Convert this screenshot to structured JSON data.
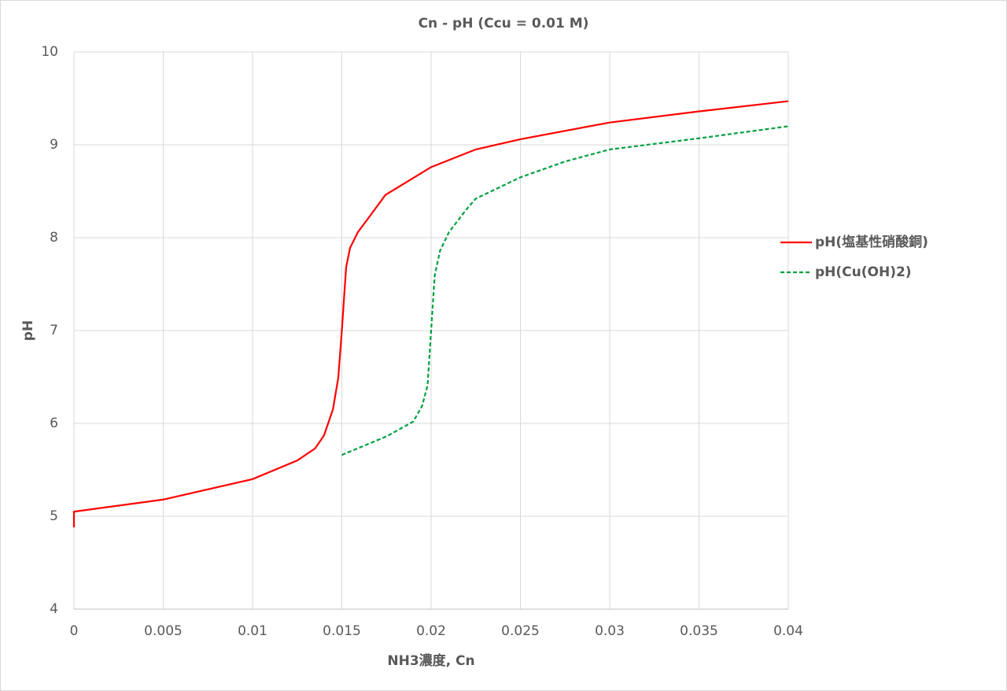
{
  "chart_data": {
    "type": "line",
    "title": "Cn - pH (Ccu = 0.01 M)",
    "x_label": "NH3濃度, Cn",
    "y_label": "pH",
    "xlim": [
      0,
      0.04
    ],
    "xticks": [
      0,
      0.005,
      0.01,
      0.015,
      0.02,
      0.025,
      0.03,
      0.035,
      0.04
    ],
    "ylim": [
      4,
      10
    ],
    "yticks": [
      4,
      5,
      6,
      7,
      8,
      9,
      10
    ],
    "grid": true,
    "legend": "right",
    "series": [
      {
        "name": "pH(塩基性硝酸銅)",
        "color": "#ff0000",
        "dash": false,
        "x": [
          0,
          0,
          0.005,
          0.01,
          0.0125,
          0.0135,
          0.014,
          0.0145,
          0.0148,
          0.015,
          0.01524,
          0.01546,
          0.0159,
          0.01656,
          0.01744,
          0.02,
          0.0225,
          0.025,
          0.03,
          0.035,
          0.04
        ],
        "values": [
          4.88,
          5.05,
          5.18,
          5.4,
          5.6,
          5.73,
          5.87,
          6.15,
          6.49,
          7.0,
          7.68,
          7.89,
          8.06,
          8.23,
          8.46,
          8.76,
          8.95,
          9.06,
          9.24,
          9.36,
          9.47
        ]
      },
      {
        "name": "pH(Cu(OH)2)",
        "color": "#00a040",
        "dash": true,
        "x": [
          0.015,
          0.0175,
          0.019,
          0.0195,
          0.0198,
          0.02,
          0.0202,
          0.0205,
          0.021,
          0.022,
          0.0225,
          0.025,
          0.0275,
          0.03,
          0.035,
          0.04
        ],
        "values": [
          5.66,
          5.86,
          6.02,
          6.19,
          6.41,
          7.0,
          7.59,
          7.86,
          8.06,
          8.31,
          8.42,
          8.65,
          8.82,
          8.95,
          9.07,
          9.2
        ]
      }
    ]
  }
}
